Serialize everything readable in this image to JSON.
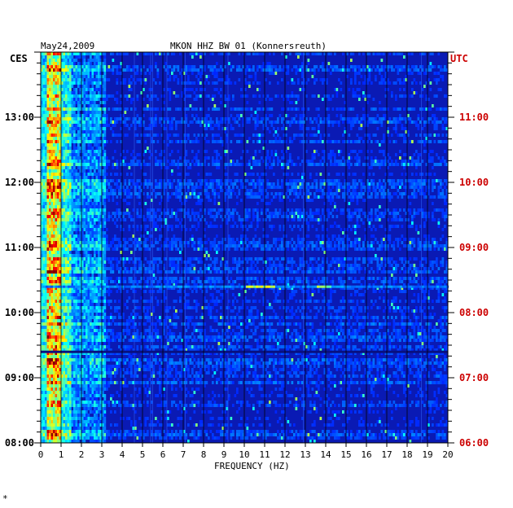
{
  "header": {
    "date": "May24,2009",
    "station": "MKON HHZ BW 01 (Konnersreuth)"
  },
  "left_zone_label": "CES",
  "right_zone_label": "UTC",
  "footer_mark": "*",
  "colors": {
    "background_field": "#0a1ab4",
    "grid": "#000000",
    "left_axis_text": "#000000",
    "right_axis_text": "#cc0000"
  },
  "chart_data": {
    "type": "heatmap",
    "title": "MKON HHZ BW 01 (Konnersreuth)",
    "xlabel": "FREQUENCY (HZ)",
    "ylabel": "",
    "xlim": [
      0,
      20
    ],
    "x_ticks": [
      "0",
      "1",
      "2",
      "3",
      "4",
      "5",
      "6",
      "7",
      "8",
      "9",
      "10",
      "11",
      "12",
      "13",
      "14",
      "15",
      "16",
      "17",
      "18",
      "19",
      "20"
    ],
    "y_left_ticks": [
      "08:00",
      "09:00",
      "10:00",
      "11:00",
      "12:00",
      "13:00"
    ],
    "y_right_ticks": [
      "06:00",
      "07:00",
      "08:00",
      "09:00",
      "10:00",
      "11:00"
    ],
    "time_range_local": [
      "08:00",
      "14:00"
    ],
    "grid": true,
    "colormap": "jet",
    "description_of_energy": "high energy concentrated below 1 Hz, moderate 1-3 Hz, sparse narrow lines elsewhere"
  }
}
